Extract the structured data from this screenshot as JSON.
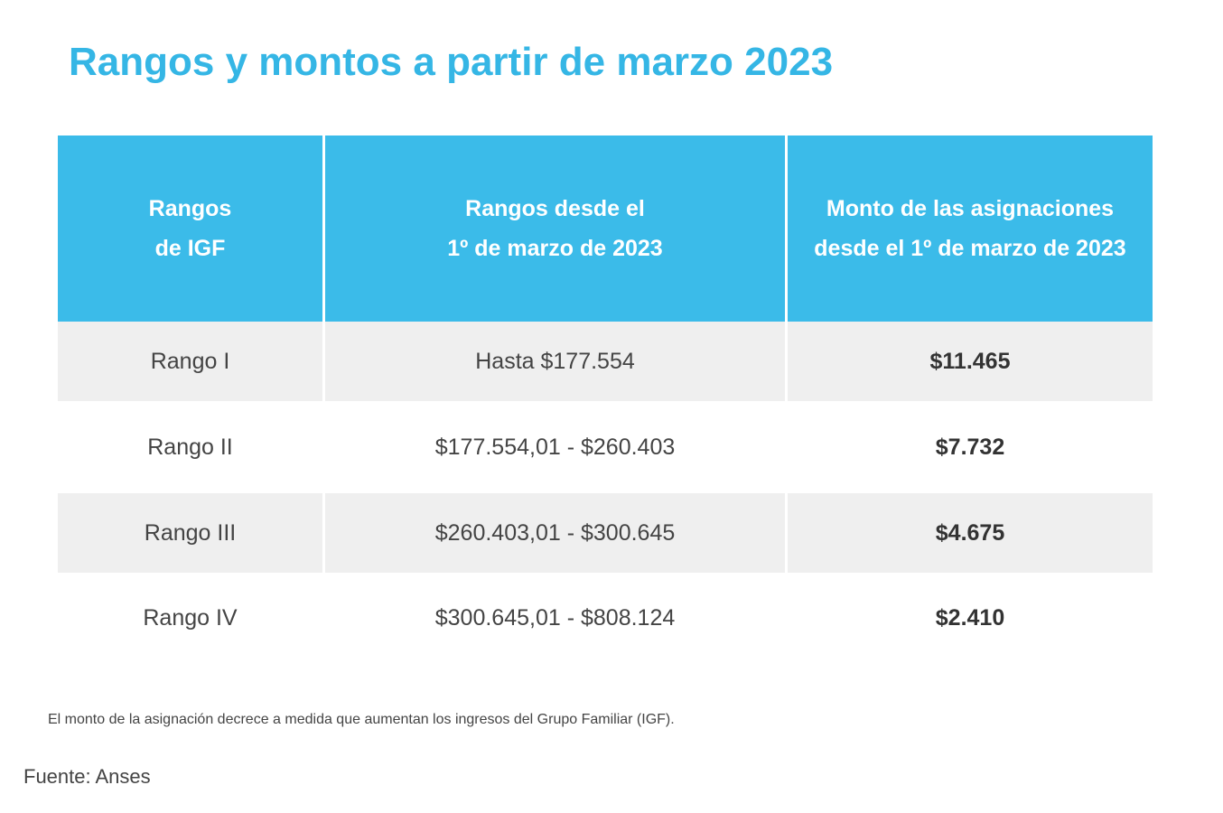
{
  "title": "Rangos y montos a partir de marzo 2023",
  "table": {
    "headers": [
      {
        "line1": "Rangos",
        "line2": "de IGF"
      },
      {
        "line1": "Rangos desde el",
        "line2": "1º de marzo de 2023"
      },
      {
        "line1": "Monto de las asignaciones",
        "line2": "desde el 1º de marzo de 2023"
      }
    ],
    "rows": [
      {
        "range": "Rango I",
        "income": "Hasta $177.554",
        "amount": "$11.465"
      },
      {
        "range": "Rango II",
        "income": "$177.554,01 - $260.403",
        "amount": "$7.732"
      },
      {
        "range": "Rango III",
        "income": "$260.403,01 - $300.645",
        "amount": "$4.675"
      },
      {
        "range": "Rango IV",
        "income": "$300.645,01 - $808.124",
        "amount": "$2.410"
      }
    ]
  },
  "note": "El monto de la asignación decrece a medida que aumentan los ingresos del Grupo Familiar (IGF).",
  "source": "Fuente: Anses",
  "colors": {
    "accent": "#35b6e5",
    "header_bg": "#3bbbe9",
    "row_shade": "#efefef"
  }
}
